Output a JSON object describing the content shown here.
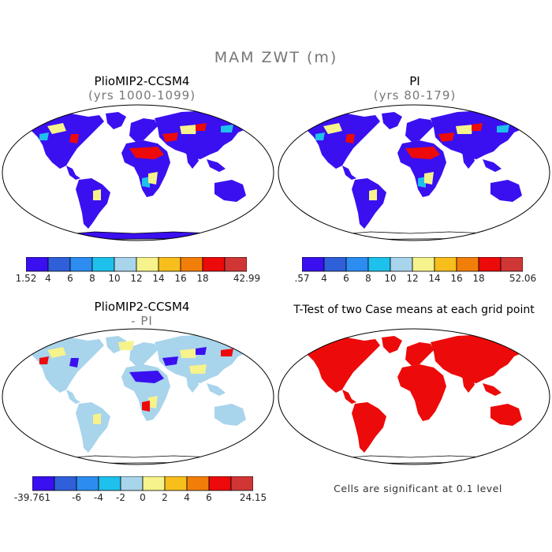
{
  "figure": {
    "title": "MAM ZWT (m)"
  },
  "panels": [
    {
      "title": "PlioMIP2-CCSM4",
      "subtitle": "(yrs 1000-1099)",
      "colorbar": {
        "colors": [
          "#3a10f0",
          "#2f5fd9",
          "#2c8cf0",
          "#1ec0ec",
          "#a8d4ec",
          "#f6f28c",
          "#f7be1c",
          "#f27e0a",
          "#ec0a0a",
          "#d13636"
        ],
        "labels": [
          "1.52",
          "4",
          "6",
          "8",
          "10",
          "12",
          "14",
          "16",
          "18",
          "42.99"
        ]
      }
    },
    {
      "title": "PI",
      "subtitle": "(yrs 80-179)",
      "colorbar": {
        "colors": [
          "#3a10f0",
          "#2f5fd9",
          "#2c8cf0",
          "#1ec0ec",
          "#a8d4ec",
          "#f6f28c",
          "#f7be1c",
          "#f27e0a",
          "#ec0a0a",
          "#d13636"
        ],
        "labels": [
          ".57",
          "4",
          "6",
          "8",
          "10",
          "12",
          "14",
          "16",
          "18",
          "52.06"
        ]
      }
    },
    {
      "title": "PlioMIP2-CCSM4",
      "subtitle": "- PI",
      "colorbar": {
        "colors": [
          "#3a10f0",
          "#2f5fd9",
          "#2c8cf0",
          "#1ec0ec",
          "#a8d4ec",
          "#f6f28c",
          "#f7be1c",
          "#f27e0a",
          "#ec0a0a",
          "#d13636"
        ],
        "labels": [
          "-39.761",
          "-6",
          "-4",
          "-2",
          "0",
          "2",
          "4",
          "6",
          "24.15"
        ]
      }
    },
    {
      "title": "T-Test of two Case means at each grid point",
      "note": "Cells are significant at 0.1 level"
    }
  ]
}
